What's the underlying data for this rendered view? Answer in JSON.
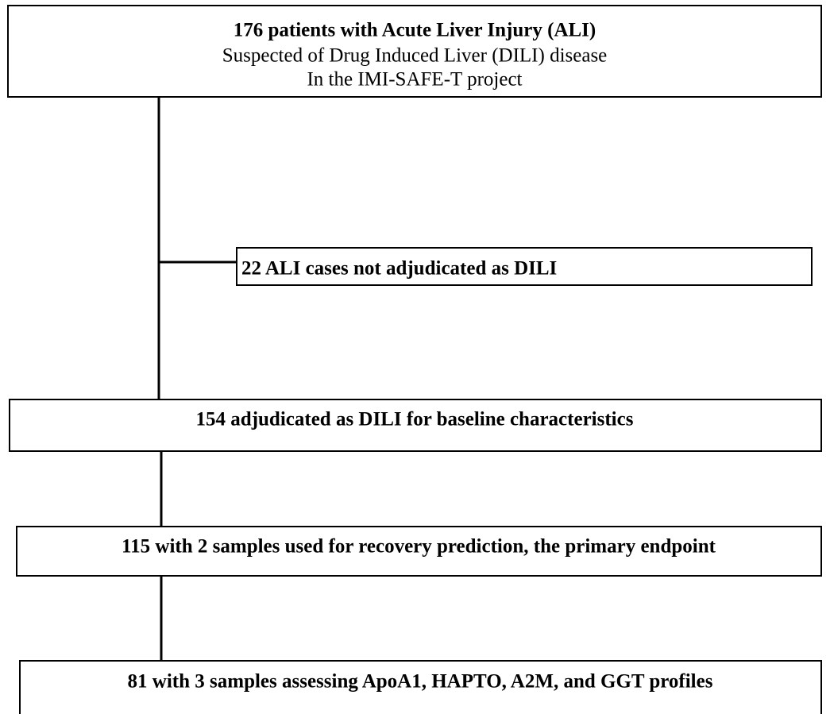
{
  "nodes": [
    {
      "lines": [
        "176 patients with Acute Liver Injury (ALI)",
        "Suspected of Drug Induced Liver (DILI) disease",
        "In the IMI-SAFE-T project"
      ]
    },
    {
      "lines": [
        "22 ALI cases not adjudicated as DILI"
      ]
    },
    {
      "lines": [
        "154 adjudicated as DILI for baseline characteristics"
      ]
    },
    {
      "lines": [
        "115 with 2 samples used for recovery prediction, the primary endpoint"
      ]
    },
    {
      "lines": [
        "81 with 3 samples assessing ApoA1, HAPTO, A2M, and GGT profiles"
      ]
    }
  ]
}
